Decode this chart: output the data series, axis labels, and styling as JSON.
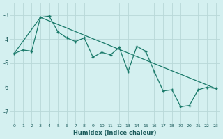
{
  "xlabel": "Humidex (Indice chaleur)",
  "bg_color": "#d4f0f0",
  "grid_color": "#b8d8d8",
  "line_color": "#1a7a6a",
  "xlim": [
    -0.5,
    23.5
  ],
  "ylim": [
    -7.5,
    -2.5
  ],
  "yticks": [
    -7,
    -6,
    -5,
    -4,
    -3
  ],
  "xticks": [
    0,
    1,
    2,
    3,
    4,
    5,
    6,
    7,
    8,
    9,
    10,
    11,
    12,
    13,
    14,
    15,
    16,
    17,
    18,
    19,
    20,
    21,
    22,
    23
  ],
  "series1_x": [
    0,
    1,
    2,
    3,
    4,
    5,
    6,
    7,
    8,
    9,
    10,
    11,
    12,
    13,
    14,
    15,
    16,
    17,
    18,
    19,
    20,
    21,
    22,
    23
  ],
  "series1_y": [
    -4.6,
    -4.45,
    -4.5,
    -3.1,
    -3.05,
    -3.7,
    -3.95,
    -4.1,
    -3.95,
    -4.75,
    -4.55,
    -4.65,
    -4.35,
    -5.35,
    -4.3,
    -4.5,
    -5.35,
    -6.15,
    -6.1,
    -6.8,
    -6.75,
    -6.1,
    -6.0,
    -6.05
  ],
  "series2_x": [
    0,
    3,
    23
  ],
  "series2_y": [
    -4.6,
    -3.1,
    -6.05
  ]
}
